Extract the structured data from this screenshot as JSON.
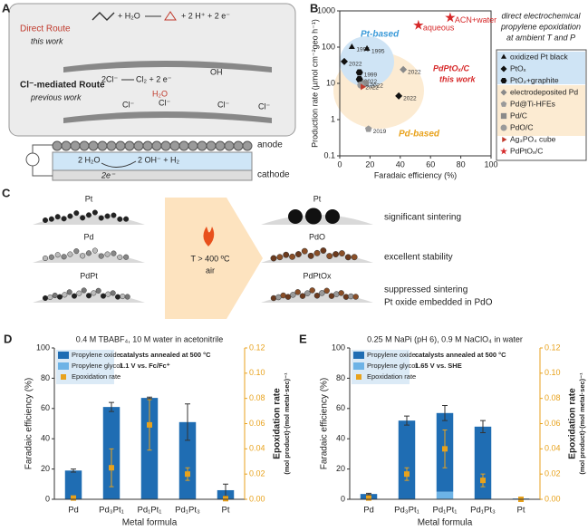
{
  "panels": {
    "A": {
      "label": "A",
      "direct_route": "Direct Route",
      "direct_note": "this work",
      "direct_eq": [
        "+ H₂O",
        "+ 2 H⁺ + 2 e⁻"
      ],
      "cl_route": "Cl⁻-mediated Route",
      "cl_note": "previous work",
      "cl_eq": [
        "2Cl⁻",
        "Cl₂ + 2 e⁻"
      ],
      "cl_water": "H₂O",
      "cl_oh": "OH",
      "surface_labels": [
        "Cl⁻",
        "Cl⁻",
        "Cl⁻",
        "Cl⁻"
      ],
      "anode": "anode",
      "cathode": "cathode",
      "cathode_eq": [
        "2 H₂O",
        "2 OH⁻ + H₂"
      ],
      "electrons": "2e⁻"
    },
    "C": {
      "label": "C",
      "before": [
        "Pt",
        "Pd",
        "PdPt"
      ],
      "after": [
        "Pt",
        "PdO",
        "PdPtOx"
      ],
      "condition": [
        "T > 400 ºC",
        "air"
      ],
      "outcomes": [
        "significant sintering",
        "excellent stability",
        "suppressed sintering",
        "Pt oxide embedded in PdO"
      ]
    }
  },
  "chart_data": [
    {
      "panel": "B",
      "type": "scatter",
      "xlabel": "Faradaic efficiency (%)",
      "ylabel": "Production rate (µmol cm⁻²geo h⁻¹)",
      "note": [
        "direct electrochemical",
        "propylene epoxidation",
        "at ambient T and P"
      ],
      "region_labels": [
        "Pt-based",
        "Pd-based"
      ],
      "highlight": [
        "PdPtOₓ/C",
        "this work"
      ],
      "xlim": [
        0,
        100
      ],
      "xticks": [
        0,
        20,
        40,
        60,
        80,
        100
      ],
      "ylim": [
        0.1,
        1000
      ],
      "yticks": [
        0.1,
        1,
        10,
        100,
        1000
      ],
      "log_y": true,
      "series": [
        {
          "name": "oxidized Pt black",
          "color": "#111111",
          "marker": "triangle",
          "x": [
            8,
            18
          ],
          "y": [
            100,
            90
          ],
          "labels": [
            "1995",
            "1995"
          ]
        },
        {
          "name": "PtOₓ",
          "color": "#111111",
          "marker": "diamond",
          "x": [
            3,
            39
          ],
          "y": [
            40,
            4.5
          ],
          "labels": [
            "2022",
            "2022"
          ]
        },
        {
          "name": "PtO₂+graphite",
          "color": "#111111",
          "marker": "hexagon",
          "x": [
            13,
            13
          ],
          "y": [
            20,
            13
          ],
          "labels": [
            "1999",
            "2022"
          ]
        },
        {
          "name": "electrodeposited Pd",
          "color": "#8a8a8a",
          "marker": "diamond",
          "x": [
            42
          ],
          "y": [
            24
          ],
          "labels": [
            "2022"
          ]
        },
        {
          "name": "Pd@Ti-HFEs",
          "color": "#9a9a9a",
          "marker": "pentagon",
          "x": [
            19
          ],
          "y": [
            0.55
          ],
          "labels": [
            "2019"
          ]
        },
        {
          "name": "Pd/C",
          "color": "#8a8a8a",
          "marker": "square",
          "x": [
            17
          ],
          "y": [
            10
          ],
          "labels": [
            "2022"
          ]
        },
        {
          "name": "PdO/C",
          "color": "#9a9a9a",
          "marker": "circle",
          "x": [
            14
          ],
          "y": [
            9
          ],
          "labels": [
            "2022"
          ]
        },
        {
          "name": "Ag₃PO₄ cube",
          "color": "#c0392b",
          "marker": "triangle-right",
          "x": [
            15
          ],
          "y": [
            8
          ]
        },
        {
          "name": "PdPtOₓ/C",
          "color": "#d62728",
          "marker": "star",
          "x": [
            52,
            73
          ],
          "y": [
            400,
            650
          ],
          "labels": [
            "aqueous",
            "ACN+water"
          ]
        }
      ]
    },
    {
      "panel": "D",
      "type": "bar",
      "title": "0.4 M TBABF₄, 10 M water in acetonitrile",
      "annotations": [
        "catalysts annealed at 500 °C",
        "1.1 V vs. Fc/Fc⁺"
      ],
      "xlabel": "Metal formula",
      "ylabel": "Faradaic efficiency (%)",
      "y2label": [
        "Epoxidation rate",
        "(mol product)·(mol metal·sec)⁻¹"
      ],
      "categories": [
        "Pd",
        "Pd₃Pt₁",
        "Pd₁Pt₁",
        "Pd₁Pt₃",
        "Pt"
      ],
      "ylim": [
        0,
        100
      ],
      "yticks": [
        0,
        20,
        40,
        60,
        80,
        100
      ],
      "y2lim": [
        0,
        0.12
      ],
      "y2ticks": [
        {
          "value": 0,
          "label": "0.00"
        },
        0.02,
        0.04,
        0.06,
        0.08,
        {
          "value": 0.1,
          "label": "0.10"
        },
        0.12
      ],
      "series": [
        {
          "name": "Propylene oxide",
          "color": "#1f6db3",
          "values": [
            19,
            61,
            67,
            51,
            6
          ],
          "errors": [
            1,
            3,
            0.5,
            12,
            4
          ]
        },
        {
          "name": "Propylene glycol",
          "color": "#6db3e6",
          "values": [
            0,
            0,
            0,
            0,
            0
          ]
        },
        {
          "name": "Epoxidation rate",
          "color": "#e8a21c",
          "axis": "y2",
          "values": [
            0.001,
            0.025,
            0.059,
            0.02,
            0.0005
          ],
          "errors": [
            0.001,
            0.015,
            0.02,
            0.005,
            0.001
          ]
        }
      ]
    },
    {
      "panel": "E",
      "type": "bar",
      "title": "0.25 M NaPi (pH 6), 0.9 M NaClO₄ in water",
      "annotations": [
        "catalysts annealed at 500 °C",
        "1.65 V vs. SHE"
      ],
      "xlabel": "Metal formula",
      "ylabel": "Faradaic efficiency (%)",
      "y2label": [
        "Epoxidation rate",
        "(mol product)·(mol metal·sec)⁻¹"
      ],
      "categories": [
        "Pd",
        "Pd₃Pt₁",
        "Pd₁Pt₁",
        "Pd₁Pt₃",
        "Pt"
      ],
      "ylim": [
        0,
        100
      ],
      "yticks": [
        0,
        20,
        40,
        60,
        80,
        100
      ],
      "y2lim": [
        0,
        0.12
      ],
      "y2ticks": [
        {
          "value": 0,
          "label": "0.00"
        },
        0.02,
        0.04,
        0.06,
        0.08,
        {
          "value": 0.1,
          "label": "0.10"
        },
        0.12
      ],
      "series": [
        {
          "name": "Propylene oxide",
          "color": "#1f6db3",
          "values": [
            3.5,
            52,
            52,
            48,
            0.5
          ],
          "errors": [
            0.5,
            3,
            5,
            4,
            0.2
          ]
        },
        {
          "name": "Propylene glycol",
          "color": "#6db3e6",
          "values": [
            0,
            0,
            5,
            0,
            0
          ]
        },
        {
          "name": "Epoxidation rate",
          "color": "#e8a21c",
          "axis": "y2",
          "values": [
            0.001,
            0.02,
            0.04,
            0.015,
            0
          ],
          "errors": [
            0.0005,
            0.005,
            0.015,
            0.005,
            0
          ]
        }
      ]
    }
  ]
}
